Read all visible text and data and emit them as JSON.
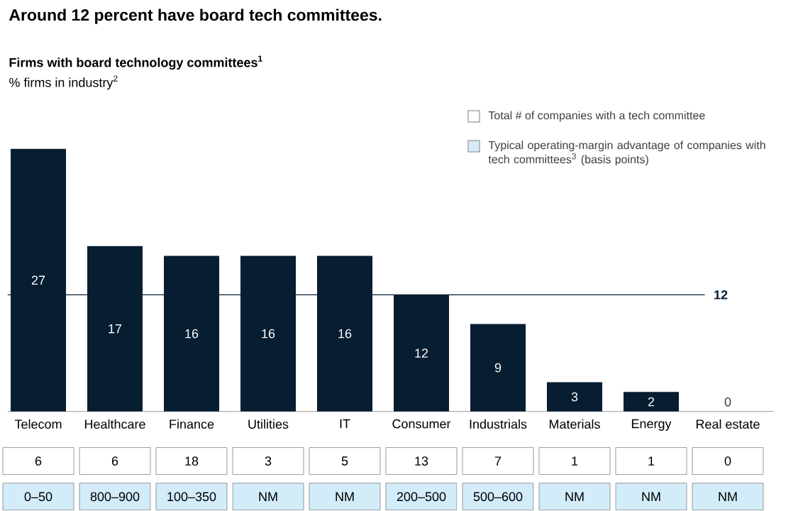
{
  "chart_data": {
    "type": "bar",
    "title": "Around 12 percent have board tech committees.",
    "subtitle": "Firms with board technology committees$^{1}$",
    "ylabel": "% firms in industry$^{2}$",
    "categories": [
      "Telecom",
      "Healthcare",
      "Finance",
      "Utilities",
      "IT",
      "Consumer",
      "Industrials",
      "Materials",
      "Energy",
      "Real estate"
    ],
    "values": [
      27,
      17,
      16,
      16,
      16,
      12,
      9,
      3,
      2,
      0
    ],
    "color": "#071d31",
    "ylim": [
      0,
      27
    ],
    "data_labels": true,
    "tick_labels": "x",
    "ref_lines": [
      {
        "axis": "y",
        "value": 12,
        "label": "12"
      }
    ],
    "annotations": [
      "Total # of companies with a tech committee",
      "Typical operating-margin advantage of companies with tech committees$^{3}$ (basis points)",
      "6",
      "6",
      "18",
      "3",
      "5",
      "13",
      "7",
      "1",
      "1",
      "0",
      "0–50",
      "800–900",
      "100–350",
      "NM",
      "NM",
      "200–500",
      "500–600",
      "NM",
      "NM",
      "NM"
    ]
  }
}
